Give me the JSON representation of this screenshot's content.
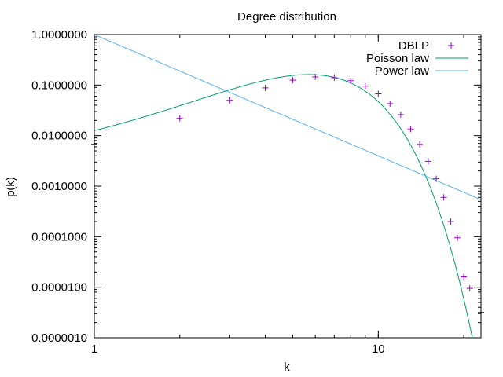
{
  "chart_data": {
    "type": "scatter",
    "title": "Degree distribution",
    "xlabel": "k",
    "ylabel": "p(k)",
    "x_scale": "log",
    "y_scale": "log",
    "xlim": [
      1,
      23
    ],
    "ylim": [
      1e-06,
      1
    ],
    "grid": false,
    "legend_position": "top-right",
    "x_ticks": [
      {
        "value": 1,
        "label": "1"
      },
      {
        "value": 10,
        "label": "10"
      }
    ],
    "y_ticks": [
      {
        "value": 1,
        "label": "1.0000000"
      },
      {
        "value": 0.1,
        "label": "0.1000000"
      },
      {
        "value": 0.01,
        "label": "0.0100000"
      },
      {
        "value": 0.001,
        "label": "0.0010000"
      },
      {
        "value": 0.0001,
        "label": "0.0001000"
      },
      {
        "value": 1e-05,
        "label": "0.0000100"
      },
      {
        "value": 1e-06,
        "label": "0.0000010"
      }
    ],
    "series": [
      {
        "name": "DBLP",
        "kind": "points",
        "marker": "plus",
        "color": "#9400d3",
        "x": [
          1,
          2,
          3,
          4,
          5,
          6,
          7,
          8,
          9,
          10,
          11,
          12,
          13,
          14,
          15,
          16,
          17,
          18,
          19,
          20,
          21,
          23
        ],
        "y": [
          0.0068,
          0.022,
          0.05,
          0.088,
          0.125,
          0.145,
          0.14,
          0.122,
          0.095,
          0.067,
          0.043,
          0.026,
          0.0135,
          0.0067,
          0.0031,
          0.0014,
          0.0006,
          0.0002,
          9.5e-05,
          1.6e-05,
          9.5e-06,
          3.2e-06
        ]
      },
      {
        "name": "Poisson law",
        "kind": "line",
        "color": "#009e73",
        "model": "poisson",
        "lambda": 6.2,
        "x_range": [
          1,
          23
        ]
      },
      {
        "name": "Power law",
        "kind": "line",
        "color": "#56b4e9",
        "model": "power",
        "coefficient": 1.0,
        "exponent": 2.4,
        "x_range": [
          1,
          23
        ]
      }
    ]
  }
}
